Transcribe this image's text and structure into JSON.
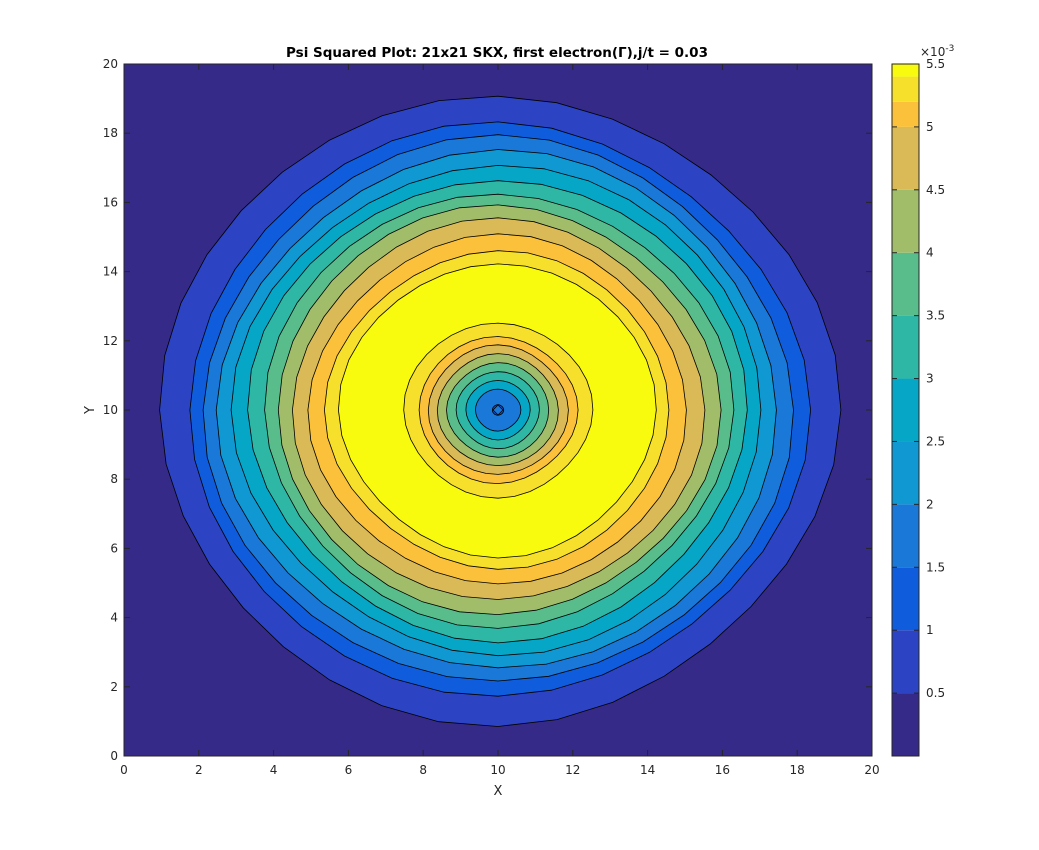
{
  "chart_data": {
    "type": "contourf",
    "title": "Psi Squared Plot: 21x21 SKX, first electron(Γ),j/t = 0.03",
    "xlabel": "X",
    "ylabel": "Y",
    "xlim": [
      0,
      20
    ],
    "ylim": [
      0,
      20
    ],
    "xticks": [
      "0",
      "2",
      "4",
      "6",
      "8",
      "10",
      "12",
      "14",
      "16",
      "18",
      "20"
    ],
    "yticks": [
      "0",
      "2",
      "4",
      "6",
      "8",
      "10",
      "12",
      "14",
      "16",
      "18",
      "20"
    ],
    "grid": false,
    "colormap": "parula",
    "center": [
      10,
      10
    ],
    "colorbar": {
      "min": 0,
      "max": 5.5,
      "exponent_label": "×10",
      "exponent_power": "-3",
      "ticks": [
        "0.5",
        "1",
        "1.5",
        "2",
        "2.5",
        "3",
        "3.5",
        "4",
        "4.5",
        "5",
        "5.5"
      ],
      "tick_values": [
        0.5,
        1,
        1.5,
        2,
        2.5,
        3,
        3.5,
        4,
        4.5,
        5,
        5.5
      ]
    },
    "contour_levels": [
      {
        "level": 0.0,
        "radius": 9.9,
        "color": "#352a87"
      },
      {
        "level": 0.5,
        "radius": 9.0,
        "color": "#2c43c3"
      },
      {
        "level": 1.0,
        "radius": 8.2,
        "color": "#0f5ddc"
      },
      {
        "level": 1.5,
        "radius": 7.8,
        "color": "#1a78d8"
      },
      {
        "level": 2.0,
        "radius": 7.4,
        "color": "#0f98d2"
      },
      {
        "level": 2.5,
        "radius": 7.0,
        "color": "#06a7c6"
      },
      {
        "level": 3.0,
        "radius": 6.6,
        "color": "#2eb7a4"
      },
      {
        "level": 3.5,
        "radius": 6.2,
        "color": "#58bd8b"
      },
      {
        "level": 4.0,
        "radius": 5.85,
        "color": "#a1bd6a"
      },
      {
        "level": 4.5,
        "radius": 5.45,
        "color": "#d9ba56"
      },
      {
        "level": 5.0,
        "radius": 5.0,
        "color": "#fbc13a"
      },
      {
        "level": 5.2,
        "radius": 4.55,
        "color": "#f7e02b"
      },
      {
        "level": 5.4,
        "radius": 4.2,
        "color": "#f9fb0e"
      },
      {
        "level": 5.2,
        "radius": 2.5,
        "color": "#f7e02b"
      },
      {
        "level": 5.0,
        "radius": 2.1,
        "color": "#fbc13a"
      },
      {
        "level": 4.5,
        "radius": 1.85,
        "color": "#d9ba56"
      },
      {
        "level": 4.0,
        "radius": 1.6,
        "color": "#a1bd6a"
      },
      {
        "level": 3.5,
        "radius": 1.35,
        "color": "#58bd8b"
      },
      {
        "level": 3.0,
        "radius": 1.1,
        "color": "#2eb7a4"
      },
      {
        "level": 2.5,
        "radius": 0.85,
        "color": "#06a7c6"
      },
      {
        "level": 2.0,
        "radius": 0.6,
        "color": "#1a78d8"
      },
      {
        "level": 1.5,
        "radius": 0.15,
        "color": "#0f5ddc"
      }
    ]
  }
}
